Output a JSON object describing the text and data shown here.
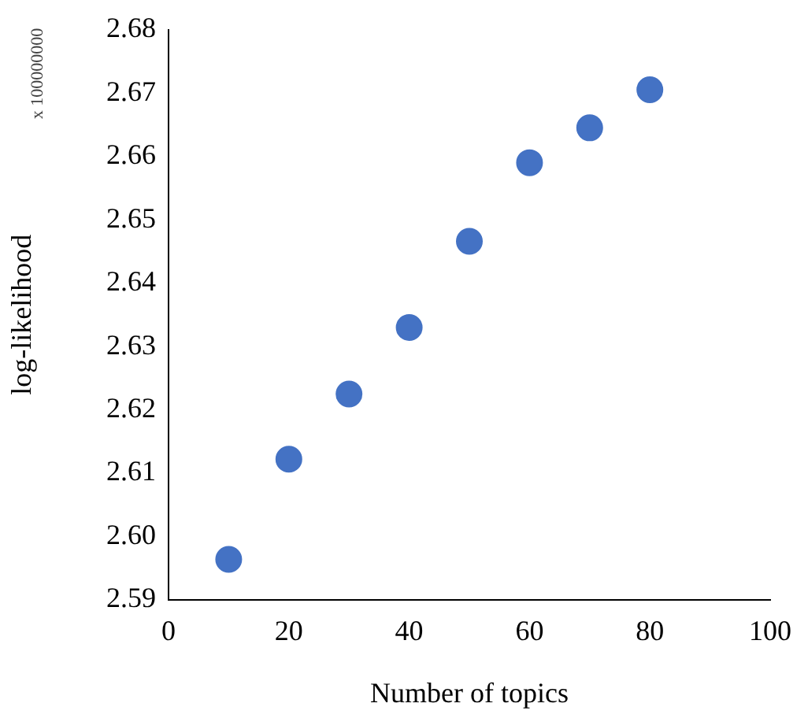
{
  "chart_data": {
    "type": "scatter",
    "xlabel": "Number of topics",
    "ylabel": "log-likelihood",
    "annotations": [
      "x 100000000"
    ],
    "x": [
      10,
      20,
      30,
      40,
      50,
      60,
      70,
      80
    ],
    "series": [
      {
        "color": "#4472c4",
        "values": [
          2.5964,
          2.6122,
          2.6225,
          2.633,
          2.6466,
          2.659,
          2.6645,
          2.6705
        ]
      }
    ],
    "xlim": [
      0,
      100
    ],
    "xticks": [
      0,
      20,
      40,
      60,
      80,
      100
    ],
    "ylim": [
      2.59,
      2.68
    ],
    "yticks": [
      2.59,
      {
        "value": 2.6,
        "label": "2.60"
      },
      2.61,
      2.62,
      2.63,
      2.64,
      2.65,
      2.66,
      2.67,
      2.68
    ],
    "grid": false,
    "legend": false,
    "marker": "circle"
  }
}
